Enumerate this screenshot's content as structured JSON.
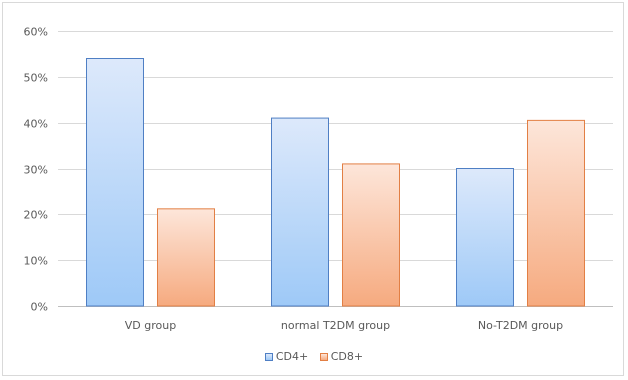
{
  "chart_data": {
    "type": "bar",
    "categories": [
      "VD group",
      "normal T2DM group",
      "No-T2DM group"
    ],
    "series": [
      {
        "name": "CD4+",
        "values": [
          54.0,
          41.0,
          30.0
        ],
        "color_top": "#dde9fb",
        "color_bottom": "#9ec9f7",
        "stroke": "#4f7fc4"
      },
      {
        "name": "CD8+",
        "values": [
          21.2,
          31.0,
          40.5
        ],
        "color_top": "#fde6da",
        "color_bottom": "#f6aa7f",
        "stroke": "#e27f44"
      }
    ],
    "y_ticks": [
      "0%",
      "10%",
      "20%",
      "30%",
      "40%",
      "50%",
      "60%"
    ],
    "ylim": [
      0,
      60
    ],
    "grid": true,
    "legend_position": "bottom"
  }
}
